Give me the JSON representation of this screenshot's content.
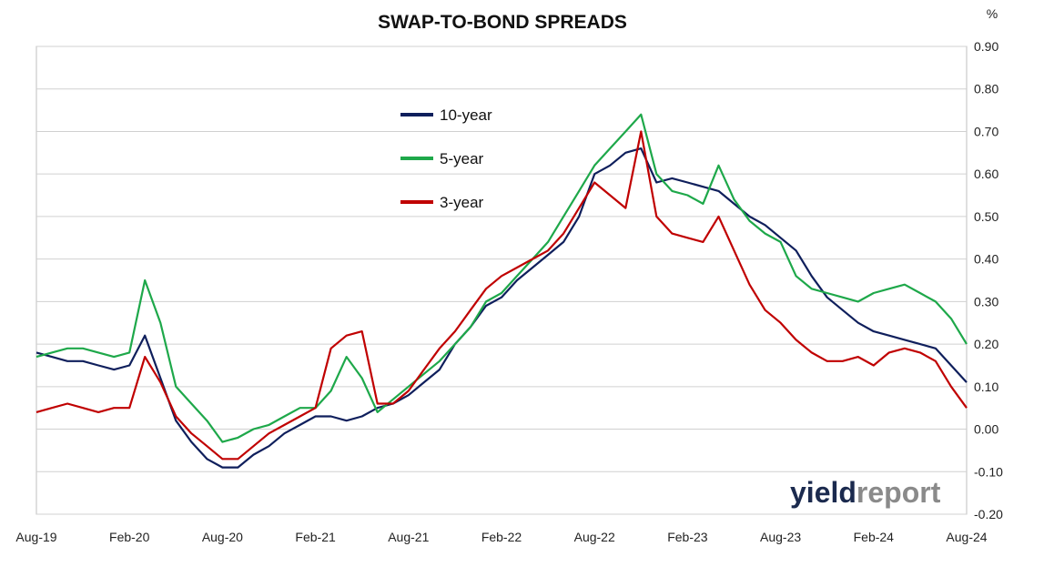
{
  "chart_data": {
    "type": "line",
    "title": "SWAP-TO-BOND SPREADS",
    "y_unit": "%",
    "xlabel": "",
    "ylabel": "",
    "ylim": [
      -0.2,
      0.9
    ],
    "y_ticks": [
      "0.90",
      "0.80",
      "0.70",
      "0.60",
      "0.50",
      "0.40",
      "0.30",
      "0.20",
      "0.10",
      "0.00",
      "-0.10",
      "-0.20"
    ],
    "y_axis_side": "right",
    "grid": true,
    "legend_placement": "top-center",
    "x_ticks": [
      "Aug-19",
      "Feb-20",
      "Aug-20",
      "Feb-21",
      "Aug-21",
      "Feb-22",
      "Aug-22",
      "Feb-23",
      "Aug-23",
      "Feb-24",
      "Aug-24"
    ],
    "x": [
      "Aug-19",
      "Sep-19",
      "Oct-19",
      "Nov-19",
      "Dec-19",
      "Jan-20",
      "Feb-20",
      "Mar-20",
      "Apr-20",
      "May-20",
      "Jun-20",
      "Jul-20",
      "Aug-20",
      "Sep-20",
      "Oct-20",
      "Nov-20",
      "Dec-20",
      "Jan-21",
      "Feb-21",
      "Mar-21",
      "Apr-21",
      "May-21",
      "Jun-21",
      "Jul-21",
      "Aug-21",
      "Sep-21",
      "Oct-21",
      "Nov-21",
      "Dec-21",
      "Jan-22",
      "Feb-22",
      "Mar-22",
      "Apr-22",
      "May-22",
      "Jun-22",
      "Jul-22",
      "Aug-22",
      "Sep-22",
      "Oct-22",
      "Nov-22",
      "Dec-22",
      "Jan-23",
      "Feb-23",
      "Mar-23",
      "Apr-23",
      "May-23",
      "Jun-23",
      "Jul-23",
      "Aug-23",
      "Sep-23",
      "Oct-23",
      "Nov-23",
      "Dec-23",
      "Jan-24",
      "Feb-24",
      "Mar-24",
      "Apr-24",
      "May-24",
      "Jun-24",
      "Jul-24",
      "Aug-24"
    ],
    "series": [
      {
        "name": "10-year",
        "color": "#0f1f5c",
        "values": [
          0.18,
          0.17,
          0.16,
          0.16,
          0.15,
          0.14,
          0.15,
          0.22,
          0.12,
          0.02,
          -0.03,
          -0.07,
          -0.09,
          -0.09,
          -0.06,
          -0.04,
          -0.01,
          0.01,
          0.03,
          0.03,
          0.02,
          0.03,
          0.05,
          0.06,
          0.08,
          0.11,
          0.14,
          0.2,
          0.24,
          0.29,
          0.31,
          0.35,
          0.38,
          0.41,
          0.44,
          0.5,
          0.6,
          0.62,
          0.65,
          0.66,
          0.58,
          0.59,
          0.58,
          0.57,
          0.56,
          0.53,
          0.5,
          0.48,
          0.45,
          0.42,
          0.36,
          0.31,
          0.28,
          0.25,
          0.23,
          0.22,
          0.21,
          0.2,
          0.19,
          0.15,
          0.11
        ]
      },
      {
        "name": "5-year",
        "color": "#1ea84a",
        "values": [
          0.17,
          0.18,
          0.19,
          0.19,
          0.18,
          0.17,
          0.18,
          0.35,
          0.25,
          0.1,
          0.06,
          0.02,
          -0.03,
          -0.02,
          0.0,
          0.01,
          0.03,
          0.05,
          0.05,
          0.09,
          0.17,
          0.12,
          0.04,
          0.07,
          0.1,
          0.13,
          0.16,
          0.2,
          0.24,
          0.3,
          0.32,
          0.36,
          0.4,
          0.44,
          0.5,
          0.56,
          0.62,
          0.66,
          0.7,
          0.74,
          0.6,
          0.56,
          0.55,
          0.53,
          0.62,
          0.54,
          0.49,
          0.46,
          0.44,
          0.36,
          0.33,
          0.32,
          0.31,
          0.3,
          0.32,
          0.33,
          0.34,
          0.32,
          0.3,
          0.26,
          0.2
        ]
      },
      {
        "name": "3-year",
        "color": "#c00000",
        "values": [
          0.04,
          0.05,
          0.06,
          0.05,
          0.04,
          0.05,
          0.05,
          0.17,
          0.11,
          0.03,
          -0.01,
          -0.04,
          -0.07,
          -0.07,
          -0.04,
          -0.01,
          0.01,
          0.03,
          0.05,
          0.19,
          0.22,
          0.23,
          0.06,
          0.06,
          0.09,
          0.14,
          0.19,
          0.23,
          0.28,
          0.33,
          0.36,
          0.38,
          0.4,
          0.42,
          0.46,
          0.52,
          0.58,
          0.55,
          0.52,
          0.7,
          0.5,
          0.46,
          0.45,
          0.44,
          0.5,
          0.42,
          0.34,
          0.28,
          0.25,
          0.21,
          0.18,
          0.16,
          0.16,
          0.17,
          0.15,
          0.18,
          0.19,
          0.18,
          0.16,
          0.1,
          0.05
        ]
      }
    ]
  },
  "legend": [
    {
      "label": "10-year",
      "color": "#0f1f5c"
    },
    {
      "label": "5-year",
      "color": "#1ea84a"
    },
    {
      "label": "3-year",
      "color": "#c00000"
    }
  ],
  "watermark": {
    "part1": "yield",
    "part2": "report"
  }
}
